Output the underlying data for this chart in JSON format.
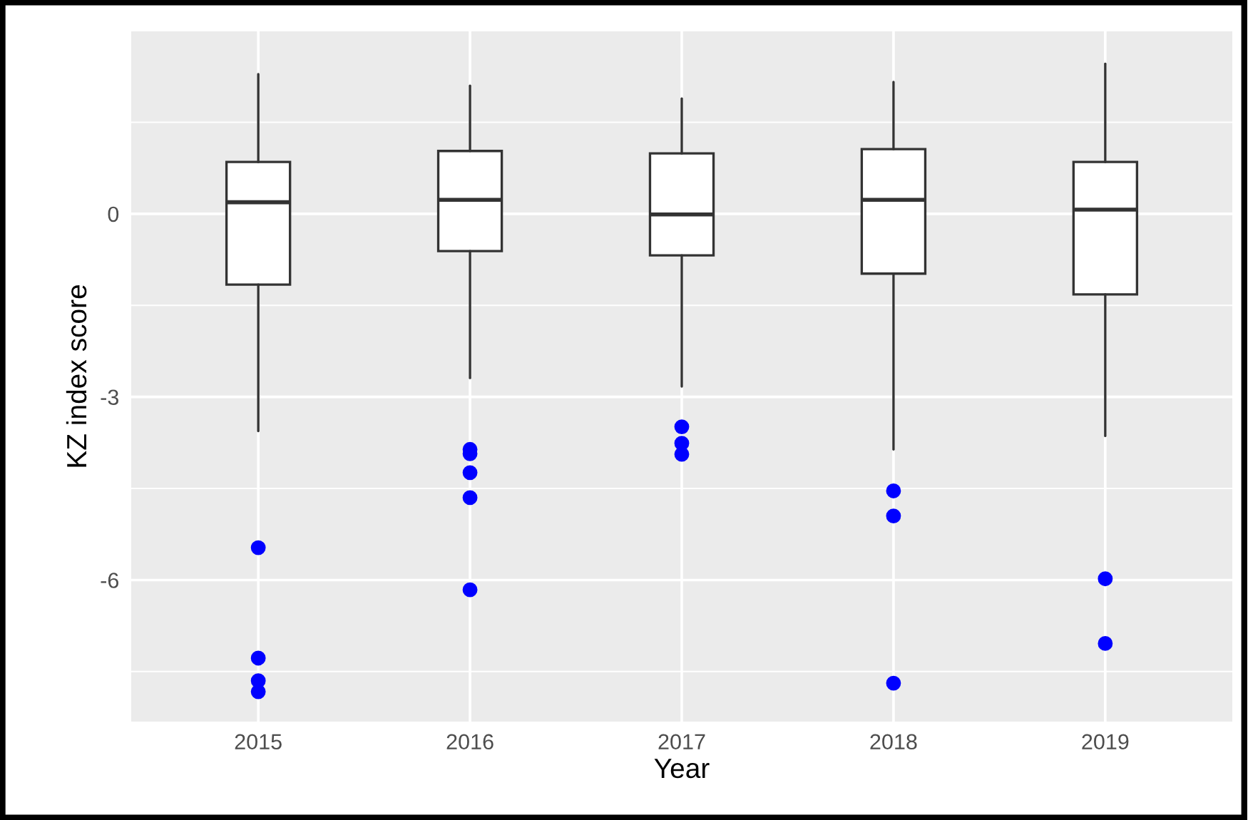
{
  "chart_data": {
    "type": "box",
    "xlabel": "Year",
    "ylabel": "KZ index score",
    "categories": [
      "2015",
      "2016",
      "2017",
      "2018",
      "2019"
    ],
    "color": "#0000ff",
    "series": [
      {
        "color": "#ffffff",
        "boxes": [
          {
            "low": -3.56,
            "q1": -1.16,
            "median": 0.19,
            "q3": 0.85,
            "high": 2.29,
            "outliers": [
              -5.47,
              -7.28,
              -7.65,
              -7.83
            ]
          },
          {
            "low": -2.69,
            "q1": -0.61,
            "median": 0.23,
            "q3": 1.03,
            "high": 2.1,
            "outliers": [
              -3.86,
              -3.93,
              -4.24,
              -4.65,
              -6.16
            ]
          },
          {
            "low": -2.83,
            "q1": -0.68,
            "median": -0.01,
            "q3": 0.99,
            "high": 1.89,
            "outliers": [
              -3.49,
              -3.76,
              -3.94
            ]
          },
          {
            "low": -3.86,
            "q1": -0.98,
            "median": 0.23,
            "q3": 1.06,
            "high": 2.16,
            "outliers": [
              -4.54,
              -4.95,
              -7.69
            ]
          },
          {
            "low": -3.64,
            "q1": -1.32,
            "median": 0.07,
            "q3": 0.85,
            "high": 2.46,
            "outliers": [
              -5.98,
              -7.04
            ]
          }
        ]
      }
    ],
    "ylim": [
      -8.32,
      2.99
    ],
    "yticks": [
      {
        "value": -6,
        "label": "-6"
      },
      {
        "value": -3,
        "label": "-3"
      },
      0
    ],
    "grid": true,
    "marker": "circle",
    "legend": false
  }
}
